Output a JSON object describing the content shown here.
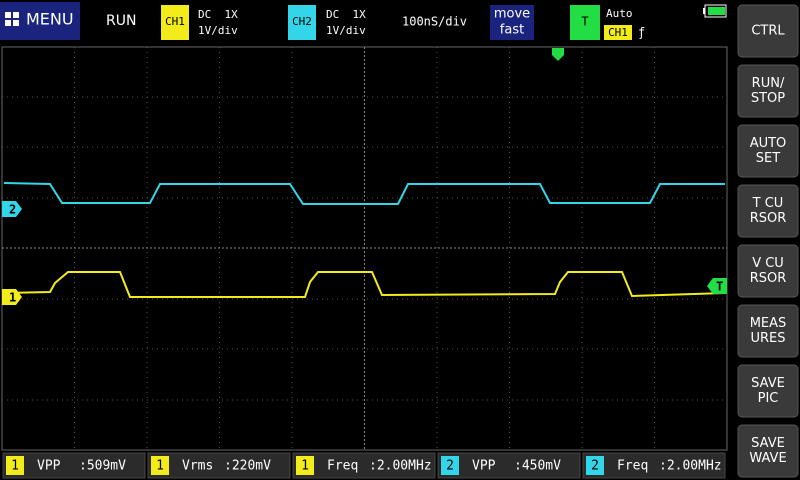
{
  "header": {
    "menu": "MENU",
    "status": "RUN",
    "ch1": {
      "badge": "CH1",
      "coupling": "DC  1X",
      "scale": "1V/div"
    },
    "ch2": {
      "badge": "CH2",
      "coupling": "DC  1X",
      "scale": "1V/div"
    },
    "timebase": "100nS/div",
    "move": [
      "move",
      "fast"
    ],
    "trigger": {
      "badge": "T",
      "mode": "Auto",
      "source": "CH1",
      "edge": "ƒ"
    }
  },
  "markers": {
    "ch2": "2",
    "ch1": "1",
    "trigger": "T"
  },
  "buttons": [
    [
      "CTRL"
    ],
    [
      "RUN/",
      "STOP"
    ],
    [
      "AUTO",
      "SET"
    ],
    [
      "T CU",
      "RSOR"
    ],
    [
      "V CU",
      "RSOR"
    ],
    [
      "MEAS",
      "URES"
    ],
    [
      "SAVE",
      "PIC"
    ],
    [
      "SAVE",
      "WAVE"
    ]
  ],
  "measurements": [
    {
      "channel": "1",
      "name": "VPP",
      "value": ":509mV"
    },
    {
      "channel": "1",
      "name": "Vrms",
      "value": ":220mV"
    },
    {
      "channel": "1",
      "name": "Freq",
      "value": ":2.00MHz"
    },
    {
      "channel": "2",
      "name": "VPP",
      "value": ":450mV"
    },
    {
      "channel": "2",
      "name": "Freq",
      "value": ":2.00MHz"
    }
  ]
}
